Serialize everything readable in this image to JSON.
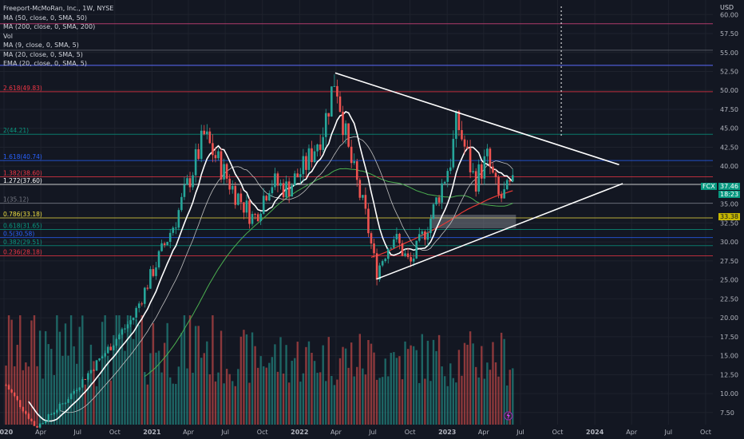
{
  "chart_data": {
    "type": "candlestick",
    "title": "Freeport-McMoRan, Inc., 1W, NYSE",
    "indicators": [
      "MA (50, close, 0, SMA, 50)",
      "MA (200, close, 0, SMA, 200)",
      "Vol",
      "MA (9, close, 0, SMA, 5)",
      "MA (20, close, 0, SMA, 5)",
      "EMA (20, close, 0, SMA, 5)"
    ],
    "currency": "USD",
    "ticker": "FCX",
    "last_price": "37.46",
    "price_sub_label": "18:23",
    "right_tag": "33.38",
    "y_axis": {
      "min": 5.9,
      "max": 61.4,
      "ticks": [
        "60.00",
        "57.50",
        "55.00",
        "52.50",
        "50.00",
        "47.50",
        "45.00",
        "42.50",
        "40.00",
        "37.50",
        "35.00",
        "32.50",
        "30.00",
        "27.50",
        "25.00",
        "22.50",
        "20.00",
        "17.50",
        "15.00",
        "12.50",
        "10.00",
        "7.50"
      ]
    },
    "x_axis": {
      "labels": [
        "2020",
        "Apr",
        "Jul",
        "Oct",
        "2021",
        "Apr",
        "Jul",
        "Oct",
        "2022",
        "Apr",
        "Jul",
        "Oct",
        "2023",
        "Apr",
        "Jul",
        "Oct",
        "2024",
        "Apr",
        "Jul",
        "Oct"
      ]
    },
    "fib_levels": [
      {
        "label": "2.618(49.83)",
        "price": 49.83,
        "color": "#f23645"
      },
      {
        "label": "2(44.21)",
        "price": 44.21,
        "color": "#089981"
      },
      {
        "label": "1.618(40.74)",
        "price": 40.74,
        "color": "#2962ff"
      },
      {
        "label": "1.382(38.60)",
        "price": 38.6,
        "color": "#f23645"
      },
      {
        "label": "1.272(37.60)",
        "price": 37.6,
        "color": "#ffffff"
      },
      {
        "label": "1(35.12)",
        "price": 35.12,
        "color": "#787b86"
      },
      {
        "label": "0.786(33.18)",
        "price": 33.18,
        "color": "#f0e040"
      },
      {
        "label": "0.618(31.65)",
        "price": 31.65,
        "color": "#089981"
      },
      {
        "label": "0.5(30.58)",
        "price": 30.58,
        "color": "#2962ff"
      },
      {
        "label": "0.382(29.51)",
        "price": 29.51,
        "color": "#089981"
      },
      {
        "label": "0.236(28.18)",
        "price": 28.18,
        "color": "#f23645"
      }
    ],
    "extra_levels": [
      58.8,
      53.3,
      55.3
    ],
    "trendlines": [
      {
        "name": "upper",
        "from": [
          "2022-03-30",
          52.3
        ],
        "to": [
          "2024-03-01",
          40.2
        ]
      },
      {
        "name": "lower",
        "from": [
          "2022-07-10",
          25.1
        ],
        "to": [
          "2024-03-10",
          37.7
        ]
      }
    ],
    "vertical_marker_date": "2023-10-10",
    "zone": {
      "from": "2022-11-20",
      "to": "2023-06-20",
      "low": 31.8,
      "high": 33.6
    }
  },
  "colors": {
    "up": "#26a69a",
    "down": "#ef5350",
    "ma50": "#4caf50",
    "ma200": "#e53935",
    "ma_white": "#ffffff"
  }
}
